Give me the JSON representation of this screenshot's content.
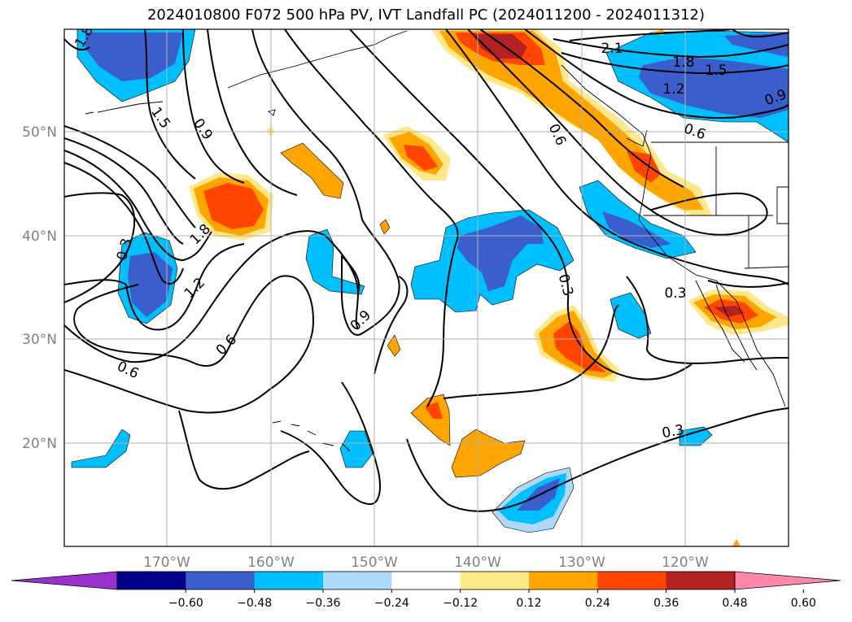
{
  "title": "2024010800 F072 500 hPa PV, IVT Landfall PC (2024011200 - 2024011312)",
  "lat_labels": [
    "50°N",
    "40°N",
    "30°N",
    "20°N"
  ],
  "lon_labels": [
    "170°W",
    "160°W",
    "150°W",
    "140°W",
    "130°W",
    "120°W"
  ],
  "colorbar": {
    "colors": [
      "#9932cc",
      "#00008b",
      "#3a5fcd",
      "#00bfff",
      "#add8f7",
      "#ffffff",
      "#ffe88a",
      "#ffa500",
      "#ff4500",
      "#b22222",
      "#ff88aa"
    ],
    "tick_labels": [
      "−0.60",
      "−0.48",
      "−0.36",
      "−0.24",
      "−0.12",
      "0.12",
      "0.24",
      "0.36",
      "0.48",
      "0.60"
    ]
  },
  "contour_labels": [
    "1.8",
    "1.5",
    "0.9",
    "2.1",
    "1.8",
    "1.5",
    "1.2",
    "0.9",
    "0.6",
    "0.6",
    "1.8",
    "1.2",
    "0.3",
    "0.6",
    "0.6",
    "0.9",
    "0.3",
    "0.3",
    "0.3"
  ]
}
